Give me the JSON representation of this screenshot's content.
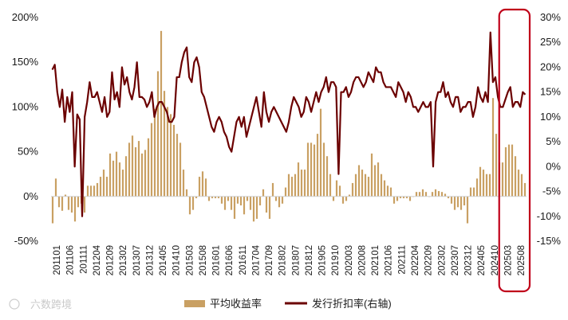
{
  "chart_data": {
    "type": "bar+line",
    "title": "",
    "xlabel": "",
    "ylabel_left": "",
    "ylabel_right": "",
    "x_tick_labels": [
      "201101",
      "201106",
      "201111",
      "201204",
      "201209",
      "201302",
      "201307",
      "201312",
      "201405",
      "201410",
      "201503",
      "201508",
      "201601",
      "201606",
      "201611",
      "201704",
      "201709",
      "201802",
      "201807",
      "201812",
      "201905",
      "201910",
      "202003",
      "202008",
      "202101",
      "202106",
      "202111",
      "202204",
      "202209",
      "202302",
      "202307",
      "202312",
      "202405",
      "202410",
      "202503",
      "202508"
    ],
    "y_left_ticks": [
      "200%",
      "150%",
      "100%",
      "50%",
      "0%",
      "-50%"
    ],
    "y_left_range": [
      -50,
      200
    ],
    "y_right_ticks": [
      "30%",
      "25%",
      "20%",
      "15%",
      "10%",
      "5%",
      "0%",
      "-5%",
      "-10%",
      "-15%"
    ],
    "y_right_range": [
      -15,
      30
    ],
    "legend_position": "bottom-center",
    "highlight": {
      "from": "202410",
      "to": "202508",
      "color": "#c0001a"
    },
    "series": [
      {
        "name": "平均收益率",
        "axis": "left",
        "kind": "bar",
        "color": "#c9a063",
        "unit": "%",
        "values": [
          -30,
          20,
          -12,
          -16,
          2,
          -15,
          -18,
          -28,
          -12,
          -8,
          -18,
          12,
          12,
          12,
          15,
          22,
          30,
          22,
          48,
          40,
          50,
          38,
          30,
          45,
          60,
          68,
          55,
          62,
          48,
          52,
          65,
          82,
          98,
          140,
          185,
          118,
          100,
          92,
          80,
          70,
          60,
          30,
          8,
          -20,
          -15,
          -2,
          22,
          28,
          20,
          -5,
          -2,
          -2,
          -2,
          -8,
          -15,
          -5,
          -15,
          -25,
          -8,
          -10,
          -20,
          -5,
          -15,
          -28,
          -25,
          -10,
          8,
          -18,
          -25,
          15,
          -5,
          -12,
          -8,
          10,
          25,
          22,
          25,
          38,
          30,
          30,
          60,
          60,
          58,
          70,
          98,
          60,
          45,
          25,
          -5,
          18,
          12,
          -8,
          -5,
          2,
          15,
          25,
          35,
          30,
          25,
          22,
          48,
          35,
          38,
          25,
          18,
          12,
          10,
          -8,
          -5,
          -2,
          -2,
          -2,
          -5,
          0,
          5,
          5,
          8,
          5,
          0,
          5,
          8,
          6,
          5,
          3,
          -2,
          -8,
          -15,
          -12,
          -15,
          -10,
          -30,
          10,
          10,
          20,
          33,
          30,
          25,
          25,
          110,
          70,
          38,
          38,
          55,
          58,
          58,
          45,
          30,
          25,
          15
        ]
      },
      {
        "name": "发行折扣率(右轴)",
        "axis": "right",
        "kind": "line",
        "color": "#6b0000",
        "unit": "%",
        "values": [
          19.5,
          20.5,
          15,
          12,
          15.5,
          9,
          14,
          11,
          15,
          0,
          10.5,
          9.5,
          -10,
          10,
          13,
          17,
          14,
          14,
          15,
          13,
          11,
          14,
          10,
          11,
          19,
          13.5,
          15,
          12,
          20,
          16.5,
          18,
          15,
          13.5,
          16,
          21,
          14,
          14,
          13.5,
          12,
          13,
          15,
          10,
          12,
          13,
          13,
          12,
          11,
          9,
          9,
          10,
          18,
          18,
          21,
          23,
          24,
          18,
          17,
          21,
          22,
          20,
          15,
          14,
          12,
          10,
          8,
          7,
          9,
          10,
          9,
          7,
          6,
          4,
          3,
          6,
          9,
          10,
          8,
          10,
          6,
          8,
          10,
          12,
          14,
          11,
          8,
          15,
          11,
          9,
          11,
          12,
          11,
          10,
          9,
          8,
          7,
          9,
          12,
          14,
          13,
          12,
          10,
          11,
          14,
          13,
          11,
          13,
          15,
          13,
          15,
          16,
          18,
          15,
          17,
          17,
          16,
          -1.5,
          15,
          15,
          16,
          14,
          15,
          17,
          18,
          18,
          17,
          16,
          17,
          19,
          18,
          17,
          20,
          19,
          19,
          17,
          16,
          16,
          16,
          15,
          14,
          17,
          16,
          15,
          13,
          15,
          14,
          12,
          12,
          11,
          12,
          13,
          12,
          12,
          13,
          0,
          13,
          15,
          15,
          17,
          14,
          15,
          13,
          12,
          14,
          14,
          11,
          12,
          12,
          13,
          13,
          10,
          12,
          16,
          14,
          13,
          15,
          13,
          27,
          17,
          18,
          14,
          12,
          12,
          13.5,
          15,
          16,
          12,
          13,
          13,
          12,
          15,
          14.5
        ]
      }
    ]
  },
  "legend": {
    "bar_label": "平均收益率",
    "line_label": "发行折扣率(右轴)"
  },
  "watermark": {
    "text": "六数跨境"
  }
}
